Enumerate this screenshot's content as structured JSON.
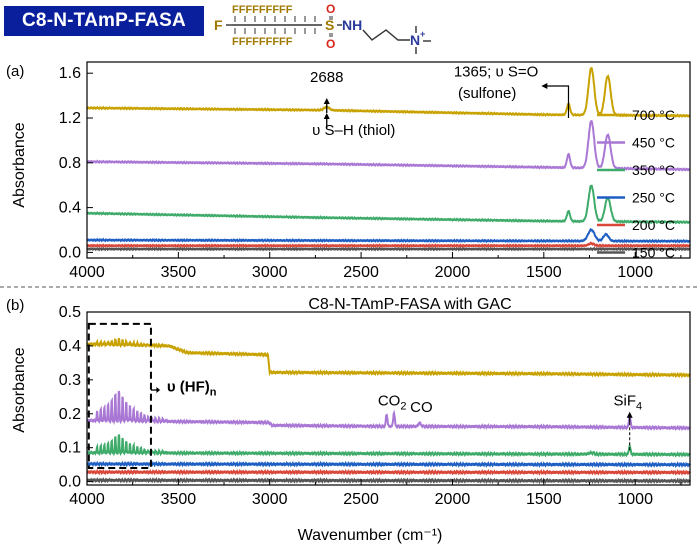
{
  "compound": {
    "name": "C8-N-TAmP-FASA",
    "f_atom": "F",
    "f_row": "FFFFFFFFF",
    "sulfur": "S",
    "oxygen_top": "O",
    "oxygen_bottom": "O",
    "nh": "NH",
    "n_plus": "N",
    "plus": "+"
  },
  "colors": {
    "700 °C": "#c8a200",
    "450 °C": "#a977d4",
    "350 °C": "#3fab6a",
    "250 °C": "#1f5fc4",
    "200 °C": "#d9473a",
    "150 °C": "#555555"
  },
  "chart_data": [
    {
      "type": "line",
      "panel_label": "(a)",
      "title": "",
      "xlabel": "",
      "ylabel": "Absorbance",
      "xlim": [
        4000,
        700
      ],
      "ylim": [
        -0.05,
        1.7
      ],
      "xticks": [
        4000,
        3500,
        3000,
        2500,
        2000,
        1500,
        1000
      ],
      "yticks": [
        0.0,
        0.4,
        0.8,
        1.2,
        1.6
      ],
      "ytick_labels": [
        "0.0",
        "0.4",
        "0.8",
        "1.2",
        "1.6"
      ],
      "series": [
        {
          "name": "700 °C",
          "baseline": [
            [
              4000,
              1.29
            ],
            [
              2700,
              1.27
            ],
            [
              1500,
              1.23
            ],
            [
              700,
              1.22
            ]
          ],
          "peaks": [
            [
              2688,
              0.03,
              20
            ],
            [
              1365,
              0.1,
              12
            ],
            [
              1240,
              0.42,
              22
            ],
            [
              1150,
              0.35,
              22
            ]
          ]
        },
        {
          "name": "450 °C",
          "baseline": [
            [
              4000,
              0.81
            ],
            [
              2700,
              0.79
            ],
            [
              1500,
              0.76
            ],
            [
              700,
              0.74
            ]
          ],
          "peaks": [
            [
              1365,
              0.12,
              12
            ],
            [
              1240,
              0.42,
              22
            ],
            [
              1150,
              0.3,
              22
            ]
          ]
        },
        {
          "name": "350 °C",
          "baseline": [
            [
              4000,
              0.35
            ],
            [
              2700,
              0.31
            ],
            [
              1500,
              0.28
            ],
            [
              700,
              0.27
            ]
          ],
          "peaks": [
            [
              1365,
              0.09,
              12
            ],
            [
              1240,
              0.32,
              22
            ],
            [
              1150,
              0.21,
              22
            ]
          ]
        },
        {
          "name": "250 °C",
          "baseline": [
            [
              4000,
              0.11
            ],
            [
              700,
              0.1
            ]
          ],
          "peaks": [
            [
              1240,
              0.1,
              25
            ],
            [
              1160,
              0.06,
              20
            ]
          ]
        },
        {
          "name": "200 °C",
          "baseline": [
            [
              4000,
              0.06
            ],
            [
              700,
              0.06
            ]
          ],
          "peaks": [
            [
              1240,
              0.02,
              20
            ]
          ]
        },
        {
          "name": "150 °C",
          "baseline": [
            [
              4000,
              0.03
            ],
            [
              700,
              0.03
            ]
          ],
          "peaks": []
        }
      ],
      "annotations": [
        {
          "text": "2688",
          "x": 2688,
          "y": 1.52
        },
        {
          "text": "υ S–H (thiol)",
          "x": 2540,
          "y": 1.05
        },
        {
          "text": "1365; υ S=O",
          "x": 1530,
          "y": 1.57
        },
        {
          "text": "(sulfone)",
          "x": 1530,
          "y": 1.38
        }
      ],
      "legend": {
        "placement": "right",
        "entries": [
          "700 °C",
          "450 °C",
          "350 °C",
          "250 °C",
          "200 °C",
          "150 °C"
        ]
      }
    },
    {
      "type": "line",
      "panel_label": "(b)",
      "title": "C8-N-TAmP-FASA with GAC",
      "xlabel": "Wavenumber (cm⁻¹)",
      "ylabel": "Absorbance",
      "xlim": [
        4000,
        700
      ],
      "ylim": [
        -0.01,
        0.5
      ],
      "xticks": [
        4000,
        3500,
        3000,
        2500,
        2000,
        1500,
        1000
      ],
      "yticks": [
        0.0,
        0.1,
        0.2,
        0.3,
        0.4,
        0.5
      ],
      "ytick_labels": [
        "0.0",
        "0.1",
        "0.2",
        "0.3",
        "0.4",
        "0.5"
      ],
      "series": [
        {
          "name": "700 °C",
          "baseline": [
            [
              4000,
              0.405
            ],
            [
              3550,
              0.4
            ],
            [
              3450,
              0.38
            ],
            [
              3010,
              0.374
            ],
            [
              3000,
              0.322
            ],
            [
              1500,
              0.318
            ],
            [
              700,
              0.314
            ]
          ],
          "hf": [
            0.02,
            0.006
          ]
        },
        {
          "name": "450 °C",
          "baseline": [
            [
              4000,
              0.18
            ],
            [
              3000,
              0.174
            ],
            [
              2990,
              0.166
            ],
            [
              2400,
              0.163
            ],
            [
              1500,
              0.162
            ],
            [
              700,
              0.158
            ]
          ],
          "hf": [
            0.1,
            0.012
          ],
          "peaks": [
            [
              2360,
              0.035,
              6
            ],
            [
              2320,
              0.04,
              6
            ],
            [
              2180,
              0.01,
              10
            ],
            [
              1030,
              0.035,
              6
            ]
          ]
        },
        {
          "name": "350 °C",
          "baseline": [
            [
              4000,
              0.085
            ],
            [
              700,
              0.08
            ]
          ],
          "hf": [
            0.06,
            0.008
          ],
          "peaks": [
            [
              1030,
              0.025,
              6
            ],
            [
              1240,
              0.004,
              20
            ]
          ]
        },
        {
          "name": "250 °C",
          "baseline": [
            [
              4000,
              0.052
            ],
            [
              700,
              0.05
            ]
          ],
          "peaks": []
        },
        {
          "name": "200 °C",
          "baseline": [
            [
              4000,
              0.028
            ],
            [
              700,
              0.027
            ]
          ],
          "peaks": []
        },
        {
          "name": "150 °C",
          "baseline": [
            [
              4000,
              0.004
            ],
            [
              700,
              0.002
            ]
          ],
          "peaks": []
        }
      ],
      "annotations": [
        {
          "text": "υ (HF)",
          "sub": "n",
          "x": 3590,
          "y": 0.265
        },
        {
          "text": "CO",
          "sub": "2",
          "x": 2330,
          "y": 0.225
        },
        {
          "text": "CO",
          "sub": "",
          "x": 2170,
          "y": 0.205
        },
        {
          "text": "SiF",
          "sub": "4",
          "x": 1040,
          "y": 0.225
        }
      ]
    }
  ]
}
